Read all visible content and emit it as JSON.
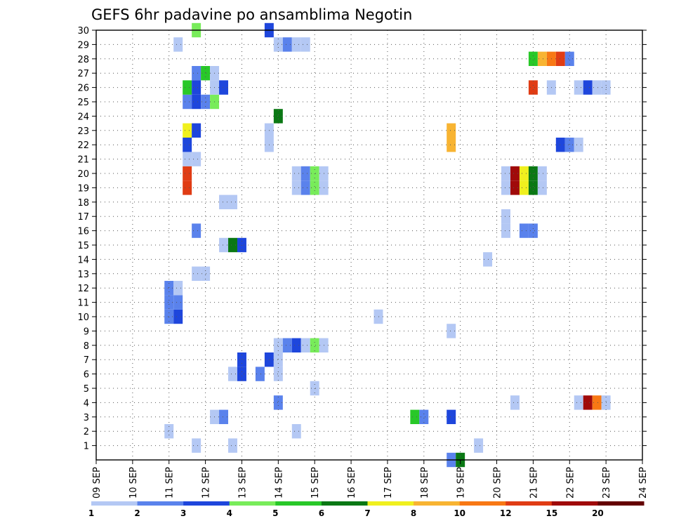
{
  "chart_data": {
    "type": "heatmap",
    "title": "GEFS 6hr padavine po ansamblima Negotin",
    "xlabel": "",
    "ylabel": "",
    "x_ticks": [
      "09 SEP",
      "10 SEP",
      "11 SEP",
      "12 SEP",
      "13 SEP",
      "14 SEP",
      "15 SEP",
      "16 SEP",
      "17 SEP",
      "18 SEP",
      "19 SEP",
      "20 SEP",
      "21 SEP",
      "22 SEP",
      "23 SEP",
      "24 SEP"
    ],
    "y_ticks": [
      "1",
      "2",
      "3",
      "4",
      "5",
      "6",
      "7",
      "8",
      "9",
      "10",
      "11",
      "12",
      "13",
      "14",
      "15",
      "16",
      "17",
      "18",
      "19",
      "20",
      "21",
      "22",
      "23",
      "24",
      "25",
      "26",
      "27",
      "28",
      "29",
      "30"
    ],
    "x_range_days": [
      9,
      24
    ],
    "y_range": [
      0,
      30
    ],
    "grid": true,
    "grid_style": "dotted",
    "time_step_hours": 6,
    "colorbar": {
      "bins": [
        1,
        2,
        3,
        4,
        5,
        6,
        7,
        8,
        10,
        12,
        15,
        20
      ],
      "labels": [
        "1",
        "2",
        "3",
        "4",
        "5",
        "6",
        "7",
        "8",
        "10",
        "12",
        "15",
        "20"
      ],
      "colors": [
        "#b4c8f4",
        "#5a82ec",
        "#1e46dc",
        "#78ec5a",
        "#28c828",
        "#0a7814",
        "#f0f01e",
        "#f8b432",
        "#f87814",
        "#e03c14",
        "#a00a0a",
        "#640000"
      ]
    },
    "cells": [
      {
        "m": 1,
        "d": 11.75,
        "c": 0
      },
      {
        "m": 1,
        "d": 12.75,
        "c": 0
      },
      {
        "m": 1,
        "d": 19.5,
        "c": 0
      },
      {
        "m": 2,
        "d": 11,
        "c": 0
      },
      {
        "m": 2,
        "d": 14.5,
        "c": 0
      },
      {
        "m": 3,
        "d": 12.25,
        "c": 0
      },
      {
        "m": 3,
        "d": 12.5,
        "c": 1
      },
      {
        "m": 3,
        "d": 17.75,
        "c": 4
      },
      {
        "m": 3,
        "d": 18,
        "c": 1
      },
      {
        "m": 3,
        "d": 18.75,
        "c": 2
      },
      {
        "m": 4,
        "d": 14,
        "c": 1
      },
      {
        "m": 4,
        "d": 20.5,
        "c": 0
      },
      {
        "m": 4,
        "d": 22.25,
        "c": 0
      },
      {
        "m": 4,
        "d": 22.5,
        "c": 10
      },
      {
        "m": 4,
        "d": 22.75,
        "c": 8
      },
      {
        "m": 4,
        "d": 23,
        "c": 0
      },
      {
        "m": 5,
        "d": 15,
        "c": 0
      },
      {
        "m": 6,
        "d": 12.75,
        "c": 0
      },
      {
        "m": 6,
        "d": 13,
        "c": 2
      },
      {
        "m": 6,
        "d": 13.5,
        "c": 1
      },
      {
        "m": 6,
        "d": 14,
        "c": 0
      },
      {
        "m": 7,
        "d": 13,
        "c": 2
      },
      {
        "m": 7,
        "d": 13.75,
        "c": 2
      },
      {
        "m": 7,
        "d": 14,
        "c": 0
      },
      {
        "m": 8,
        "d": 14,
        "c": 0
      },
      {
        "m": 8,
        "d": 14.25,
        "c": 1
      },
      {
        "m": 8,
        "d": 14.5,
        "c": 2
      },
      {
        "m": 8,
        "d": 14.75,
        "c": 0
      },
      {
        "m": 8,
        "d": 15,
        "c": 3
      },
      {
        "m": 8,
        "d": 15.25,
        "c": 0
      },
      {
        "m": 9,
        "d": 18.75,
        "c": 0
      },
      {
        "m": 10,
        "d": 11,
        "c": 1
      },
      {
        "m": 10,
        "d": 11.25,
        "c": 2
      },
      {
        "m": 10,
        "d": 16.75,
        "c": 0
      },
      {
        "m": 11,
        "d": 11,
        "c": 1
      },
      {
        "m": 11,
        "d": 11.25,
        "c": 1
      },
      {
        "m": 12,
        "d": 11,
        "c": 1
      },
      {
        "m": 12,
        "d": 11.25,
        "c": 0
      },
      {
        "m": 13,
        "d": 11.75,
        "c": 0
      },
      {
        "m": 13,
        "d": 12,
        "c": 0
      },
      {
        "m": 14,
        "d": 19.75,
        "c": 0
      },
      {
        "m": 15,
        "d": 12.5,
        "c": 0
      },
      {
        "m": 15,
        "d": 12.75,
        "c": 5
      },
      {
        "m": 15,
        "d": 13,
        "c": 2
      },
      {
        "m": 16,
        "d": 11.75,
        "c": 1
      },
      {
        "m": 16,
        "d": 20.25,
        "c": 0
      },
      {
        "m": 16,
        "d": 20.75,
        "c": 1
      },
      {
        "m": 16,
        "d": 21,
        "c": 1
      },
      {
        "m": 17,
        "d": 20.25,
        "c": 0
      },
      {
        "m": 18,
        "d": 12.5,
        "c": 0
      },
      {
        "m": 18,
        "d": 12.75,
        "c": 0
      },
      {
        "m": 19,
        "d": 11.5,
        "c": 9
      },
      {
        "m": 19,
        "d": 14.5,
        "c": 0
      },
      {
        "m": 19,
        "d": 14.75,
        "c": 1
      },
      {
        "m": 19,
        "d": 15,
        "c": 3
      },
      {
        "m": 19,
        "d": 15.25,
        "c": 0
      },
      {
        "m": 19,
        "d": 20.25,
        "c": 0
      },
      {
        "m": 19,
        "d": 20.5,
        "c": 10
      },
      {
        "m": 19,
        "d": 20.75,
        "c": 6
      },
      {
        "m": 19,
        "d": 21,
        "c": 5
      },
      {
        "m": 19,
        "d": 21.25,
        "c": 0
      },
      {
        "m": 20,
        "d": 11.5,
        "c": 9
      },
      {
        "m": 20,
        "d": 14.5,
        "c": 0
      },
      {
        "m": 20,
        "d": 14.75,
        "c": 1
      },
      {
        "m": 20,
        "d": 15,
        "c": 3
      },
      {
        "m": 20,
        "d": 15.25,
        "c": 0
      },
      {
        "m": 20,
        "d": 20.25,
        "c": 0
      },
      {
        "m": 20,
        "d": 20.5,
        "c": 10
      },
      {
        "m": 20,
        "d": 20.75,
        "c": 6
      },
      {
        "m": 20,
        "d": 21,
        "c": 5
      },
      {
        "m": 20,
        "d": 21.25,
        "c": 0
      },
      {
        "m": 21,
        "d": 11.5,
        "c": 0
      },
      {
        "m": 21,
        "d": 11.75,
        "c": 0
      },
      {
        "m": 22,
        "d": 11.5,
        "c": 2
      },
      {
        "m": 22,
        "d": 13.75,
        "c": 0
      },
      {
        "m": 22,
        "d": 18.75,
        "c": 7
      },
      {
        "m": 22,
        "d": 21.75,
        "c": 2
      },
      {
        "m": 22,
        "d": 22,
        "c": 1
      },
      {
        "m": 22,
        "d": 22.25,
        "c": 0
      },
      {
        "m": 23,
        "d": 11.5,
        "c": 6
      },
      {
        "m": 23,
        "d": 11.75,
        "c": 2
      },
      {
        "m": 23,
        "d": 13.75,
        "c": 0
      },
      {
        "m": 23,
        "d": 18.75,
        "c": 7
      },
      {
        "m": 24,
        "d": 14,
        "c": 5
      },
      {
        "m": 25,
        "d": 11.5,
        "c": 1
      },
      {
        "m": 25,
        "d": 11.75,
        "c": 2
      },
      {
        "m": 25,
        "d": 12,
        "c": 1
      },
      {
        "m": 25,
        "d": 12.25,
        "c": 3
      },
      {
        "m": 26,
        "d": 11.5,
        "c": 4
      },
      {
        "m": 26,
        "d": 11.75,
        "c": 2
      },
      {
        "m": 26,
        "d": 12.25,
        "c": 0
      },
      {
        "m": 26,
        "d": 12.5,
        "c": 2
      },
      {
        "m": 26,
        "d": 21,
        "c": 9
      },
      {
        "m": 26,
        "d": 21.5,
        "c": 0
      },
      {
        "m": 26,
        "d": 22.25,
        "c": 0
      },
      {
        "m": 26,
        "d": 22.5,
        "c": 2
      },
      {
        "m": 26,
        "d": 22.75,
        "c": 0
      },
      {
        "m": 26,
        "d": 23,
        "c": 0
      },
      {
        "m": 27,
        "d": 11.75,
        "c": 1
      },
      {
        "m": 27,
        "d": 12,
        "c": 4
      },
      {
        "m": 27,
        "d": 12.25,
        "c": 0
      },
      {
        "m": 28,
        "d": 21,
        "c": 4
      },
      {
        "m": 28,
        "d": 21.25,
        "c": 7
      },
      {
        "m": 28,
        "d": 21.5,
        "c": 8
      },
      {
        "m": 28,
        "d": 21.75,
        "c": 9
      },
      {
        "m": 28,
        "d": 22,
        "c": 1
      },
      {
        "m": 29,
        "d": 11.25,
        "c": 0
      },
      {
        "m": 29,
        "d": 14,
        "c": 0
      },
      {
        "m": 29,
        "d": 14.25,
        "c": 1
      },
      {
        "m": 29,
        "d": 14.5,
        "c": 0
      },
      {
        "m": 29,
        "d": 14.75,
        "c": 0
      },
      {
        "m": 30,
        "d": 11.75,
        "c": 3
      },
      {
        "m": 30,
        "d": 13.75,
        "c": 2
      },
      {
        "m": 0,
        "d": 18.75,
        "c": 1
      },
      {
        "m": 0,
        "d": 19,
        "c": 5
      }
    ]
  }
}
